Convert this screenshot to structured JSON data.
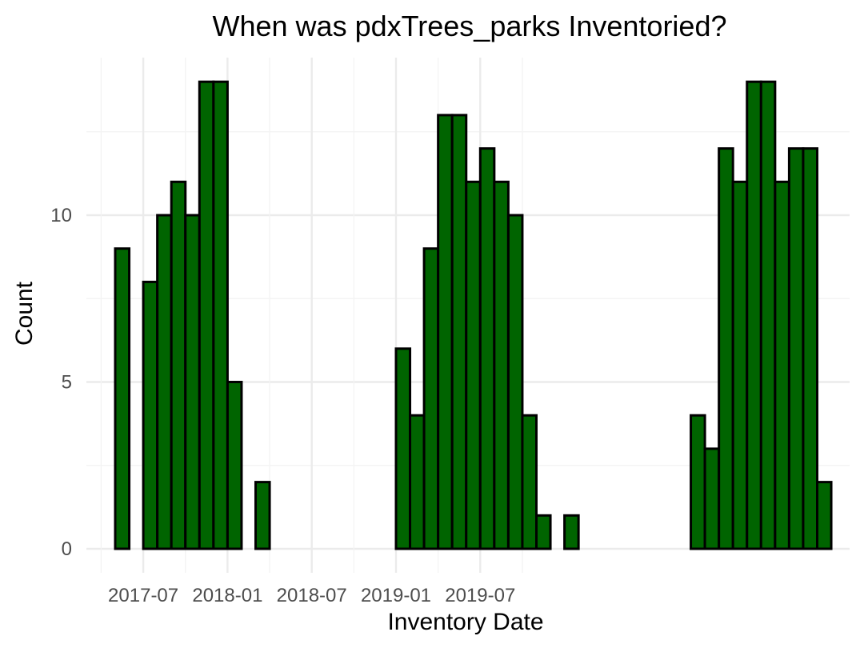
{
  "chart_data": {
    "type": "bar",
    "title": "When was pdxTrees_parks Inventoried?",
    "xlabel": "Inventory Date",
    "ylabel": "Count",
    "bar_color": "#006400",
    "bar_outline": "#000000",
    "x_tick_labels": [
      "2017-07",
      "2018-01",
      "2018-07",
      "2019-01",
      "2019-07"
    ],
    "y_tick_labels": [
      "0",
      "5",
      "10"
    ],
    "y_ticks": [
      0,
      5,
      10
    ],
    "ylim": [
      0,
      14
    ],
    "grid": true,
    "legend": "none",
    "bin_width_months": 1,
    "categories": [
      "2017-05",
      "2017-06",
      "2017-07",
      "2017-08",
      "2017-09",
      "2017-10",
      "2017-11",
      "2017-12",
      "2018-01",
      "2018-02",
      "2018-03",
      "2018-04",
      "2018-05",
      "2018-06",
      "2018-07",
      "2018-08",
      "2018-09",
      "2018-10",
      "2018-11",
      "2018-12",
      "2019-01",
      "2019-02",
      "2019-03",
      "2019-04",
      "2019-05",
      "2019-06",
      "2019-07",
      "2019-08",
      "2019-09",
      "2019-10",
      "2019-11",
      "2019-12",
      "2020-01",
      "2020-02",
      "2020-03",
      "2020-04",
      "2020-05",
      "2020-06",
      "2020-07",
      "2020-08",
      "2020-09",
      "2020-10",
      "2020-11",
      "2020-12",
      "2021-01",
      "2021-02",
      "2021-03",
      "2021-04",
      "2021-05",
      "2021-06",
      "2021-07"
    ],
    "values": [
      9,
      0,
      8,
      10,
      11,
      10,
      14,
      14,
      5,
      0,
      2,
      0,
      0,
      0,
      0,
      0,
      0,
      0,
      0,
      0,
      6,
      4,
      9,
      13,
      13,
      11,
      12,
      11,
      10,
      4,
      1,
      0,
      1,
      0,
      0,
      0,
      0,
      0,
      0,
      0,
      0,
      4,
      3,
      12,
      11,
      14,
      14,
      11,
      12,
      12,
      2
    ]
  }
}
